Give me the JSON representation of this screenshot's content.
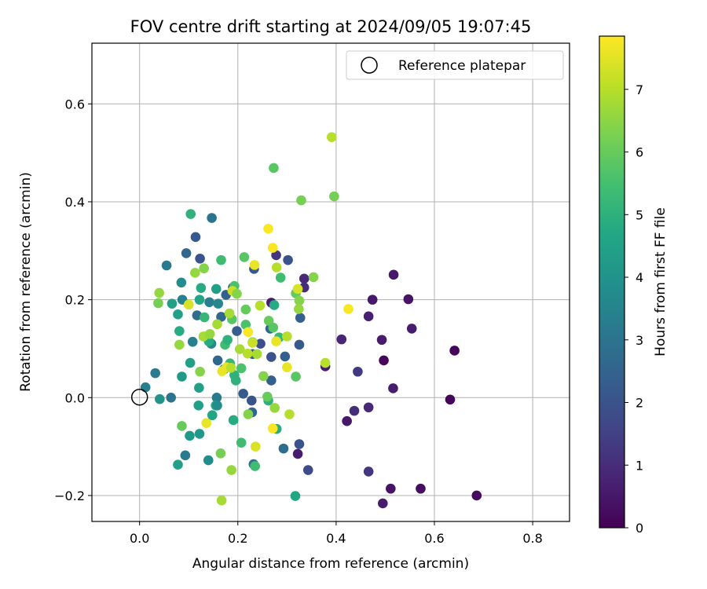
{
  "chart_data": {
    "type": "scatter",
    "title": "FOV centre drift starting at 2024/09/05 19:07:45",
    "xlabel": "Angular distance from reference (arcmin)",
    "ylabel": "Rotation from reference (arcmin)",
    "xlim": [
      -0.097,
      0.875
    ],
    "ylim": [
      -0.253,
      0.724
    ],
    "xticks": [
      0.0,
      0.2,
      0.4,
      0.6,
      0.8
    ],
    "xtick_labels": [
      "0.0",
      "0.2",
      "0.4",
      "0.6",
      "0.8"
    ],
    "yticks": [
      -0.2,
      0.0,
      0.2,
      0.4,
      0.6
    ],
    "ytick_labels": [
      "−0.2",
      "0.0",
      "0.2",
      "0.4",
      "0.6"
    ],
    "grid": true,
    "legend": {
      "placement": "top-right",
      "entries": [
        "Reference platepar"
      ]
    },
    "reference_point": {
      "x": 0.0,
      "y": 0.0,
      "marker": "hollow circle"
    },
    "colormap": "viridis",
    "colorbar": {
      "label": "Hours from first FF file",
      "range": [
        0,
        7.85
      ],
      "ticks": [
        0,
        1,
        2,
        3,
        4,
        5,
        6,
        7
      ],
      "tick_labels": [
        "0",
        "1",
        "2",
        "3",
        "4",
        "5",
        "6",
        "7"
      ]
    },
    "points": [
      {
        "x": 0.641,
        "y": 0.096,
        "h": 0.1
      },
      {
        "x": 0.686,
        "y": -0.2,
        "h": 0.2
      },
      {
        "x": 0.632,
        "y": -0.004,
        "h": 0.1
      },
      {
        "x": 0.572,
        "y": -0.186,
        "h": 0.3
      },
      {
        "x": 0.554,
        "y": 0.141,
        "h": 0.6
      },
      {
        "x": 0.547,
        "y": 0.201,
        "h": 0.4
      },
      {
        "x": 0.517,
        "y": 0.251,
        "h": 0.5
      },
      {
        "x": 0.516,
        "y": 0.019,
        "h": 0.6
      },
      {
        "x": 0.511,
        "y": -0.186,
        "h": 0.4
      },
      {
        "x": 0.497,
        "y": 0.076,
        "h": 0.1
      },
      {
        "x": 0.495,
        "y": -0.216,
        "h": 0.6
      },
      {
        "x": 0.493,
        "y": 0.118,
        "h": 0.6
      },
      {
        "x": 0.474,
        "y": 0.2,
        "h": 0.5
      },
      {
        "x": 0.466,
        "y": 0.166,
        "h": 0.7
      },
      {
        "x": 0.466,
        "y": -0.02,
        "h": 0.9
      },
      {
        "x": 0.466,
        "y": -0.151,
        "h": 1.2
      },
      {
        "x": 0.444,
        "y": 0.053,
        "h": 1.3
      },
      {
        "x": 0.437,
        "y": -0.027,
        "h": 1.0
      },
      {
        "x": 0.422,
        "y": -0.048,
        "h": 0.5
      },
      {
        "x": 0.411,
        "y": 0.119,
        "h": 0.8
      },
      {
        "x": 0.378,
        "y": 0.064,
        "h": 0.6
      },
      {
        "x": 0.335,
        "y": 0.243,
        "h": 0.9
      },
      {
        "x": 0.335,
        "y": 0.225,
        "h": 1.0
      },
      {
        "x": 0.343,
        "y": -0.148,
        "h": 1.8
      },
      {
        "x": 0.325,
        "y": -0.095,
        "h": 2.0
      },
      {
        "x": 0.322,
        "y": -0.115,
        "h": 0.6
      },
      {
        "x": 0.325,
        "y": 0.108,
        "h": 2.2
      },
      {
        "x": 0.327,
        "y": 0.163,
        "h": 2.4
      },
      {
        "x": 0.302,
        "y": 0.281,
        "h": 2.0
      },
      {
        "x": 0.278,
        "y": 0.291,
        "h": 1.2
      },
      {
        "x": 0.296,
        "y": 0.084,
        "h": 2.4
      },
      {
        "x": 0.293,
        "y": -0.104,
        "h": 2.8
      },
      {
        "x": 0.268,
        "y": 0.194,
        "h": 0.6
      },
      {
        "x": 0.266,
        "y": 0.141,
        "h": 2.6
      },
      {
        "x": 0.268,
        "y": 0.083,
        "h": 2.0
      },
      {
        "x": 0.268,
        "y": 0.035,
        "h": 2.4
      },
      {
        "x": 0.233,
        "y": 0.263,
        "h": 2.2
      },
      {
        "x": 0.246,
        "y": 0.11,
        "h": 1.9
      },
      {
        "x": 0.23,
        "y": 0.089,
        "h": 2.3
      },
      {
        "x": 0.228,
        "y": -0.006,
        "h": 2.0
      },
      {
        "x": 0.229,
        "y": -0.03,
        "h": 2.6
      },
      {
        "x": 0.232,
        "y": -0.136,
        "h": 3.0
      },
      {
        "x": 0.211,
        "y": 0.008,
        "h": 2.2
      },
      {
        "x": 0.198,
        "y": 0.136,
        "h": 2.3
      },
      {
        "x": 0.19,
        "y": 0.225,
        "h": 2.0
      },
      {
        "x": 0.176,
        "y": 0.21,
        "h": 2.4
      },
      {
        "x": 0.166,
        "y": 0.165,
        "h": 2.6
      },
      {
        "x": 0.159,
        "y": 0.076,
        "h": 2.6
      },
      {
        "x": 0.147,
        "y": 0.367,
        "h": 3.0
      },
      {
        "x": 0.114,
        "y": 0.328,
        "h": 2.2
      },
      {
        "x": 0.123,
        "y": 0.284,
        "h": 2.0
      },
      {
        "x": 0.095,
        "y": 0.295,
        "h": 2.6
      },
      {
        "x": 0.055,
        "y": 0.27,
        "h": 3.2
      },
      {
        "x": 0.117,
        "y": 0.168,
        "h": 2.8
      },
      {
        "x": 0.087,
        "y": 0.2,
        "h": 3.4
      },
      {
        "x": 0.085,
        "y": 0.235,
        "h": 3.8
      },
      {
        "x": 0.142,
        "y": 0.195,
        "h": 3.3
      },
      {
        "x": 0.16,
        "y": 0.192,
        "h": 3.6
      },
      {
        "x": 0.108,
        "y": 0.114,
        "h": 3.4
      },
      {
        "x": 0.146,
        "y": 0.11,
        "h": 3.6
      },
      {
        "x": 0.172,
        "y": 0.058,
        "h": 3.0
      },
      {
        "x": 0.157,
        "y": 0.0,
        "h": 3.2
      },
      {
        "x": 0.064,
        "y": 0.0,
        "h": 3.0
      },
      {
        "x": 0.012,
        "y": 0.021,
        "h": 3.4
      },
      {
        "x": 0.032,
        "y": 0.05,
        "h": 3.2
      },
      {
        "x": 0.041,
        "y": -0.003,
        "h": 4.0
      },
      {
        "x": 0.093,
        "y": -0.118,
        "h": 3.2
      },
      {
        "x": 0.14,
        "y": -0.128,
        "h": 3.8
      },
      {
        "x": 0.122,
        "y": -0.074,
        "h": 4.2
      },
      {
        "x": 0.102,
        "y": -0.078,
        "h": 4.2
      },
      {
        "x": 0.12,
        "y": -0.016,
        "h": 4.4
      },
      {
        "x": 0.148,
        "y": -0.036,
        "h": 4.6
      },
      {
        "x": 0.155,
        "y": -0.016,
        "h": 4.8
      },
      {
        "x": 0.158,
        "y": -0.016,
        "h": 3.8
      },
      {
        "x": 0.078,
        "y": -0.137,
        "h": 4.4
      },
      {
        "x": 0.086,
        "y": 0.043,
        "h": 4.2
      },
      {
        "x": 0.103,
        "y": 0.071,
        "h": 4.4
      },
      {
        "x": 0.121,
        "y": 0.02,
        "h": 4.4
      },
      {
        "x": 0.078,
        "y": 0.17,
        "h": 4.4
      },
      {
        "x": 0.066,
        "y": 0.192,
        "h": 4.4
      },
      {
        "x": 0.081,
        "y": 0.136,
        "h": 4.8
      },
      {
        "x": 0.122,
        "y": 0.2,
        "h": 4.6
      },
      {
        "x": 0.125,
        "y": 0.224,
        "h": 4.8
      },
      {
        "x": 0.156,
        "y": 0.222,
        "h": 4.4
      },
      {
        "x": 0.104,
        "y": 0.375,
        "h": 5.0
      },
      {
        "x": 0.166,
        "y": 0.281,
        "h": 5.4
      },
      {
        "x": 0.132,
        "y": 0.164,
        "h": 5.2
      },
      {
        "x": 0.141,
        "y": 0.115,
        "h": 4.8
      },
      {
        "x": 0.174,
        "y": 0.108,
        "h": 5.4
      },
      {
        "x": 0.179,
        "y": 0.118,
        "h": 5.0
      },
      {
        "x": 0.193,
        "y": 0.046,
        "h": 5.0
      },
      {
        "x": 0.184,
        "y": 0.07,
        "h": 5.2
      },
      {
        "x": 0.196,
        "y": 0.035,
        "h": 5.0
      },
      {
        "x": 0.191,
        "y": -0.046,
        "h": 4.8
      },
      {
        "x": 0.207,
        "y": -0.092,
        "h": 5.4
      },
      {
        "x": 0.235,
        "y": -0.14,
        "h": 5.4
      },
      {
        "x": 0.262,
        "y": -0.006,
        "h": 5.0
      },
      {
        "x": 0.279,
        "y": -0.064,
        "h": 4.8
      },
      {
        "x": 0.207,
        "y": 0.06,
        "h": 5.6
      },
      {
        "x": 0.216,
        "y": 0.149,
        "h": 5.6
      },
      {
        "x": 0.23,
        "y": 0.113,
        "h": 5.8
      },
      {
        "x": 0.188,
        "y": 0.16,
        "h": 5.8
      },
      {
        "x": 0.193,
        "y": 0.228,
        "h": 5.6
      },
      {
        "x": 0.213,
        "y": 0.287,
        "h": 5.8
      },
      {
        "x": 0.216,
        "y": 0.18,
        "h": 6.0
      },
      {
        "x": 0.274,
        "y": 0.189,
        "h": 4.8
      },
      {
        "x": 0.263,
        "y": 0.157,
        "h": 6.0
      },
      {
        "x": 0.272,
        "y": 0.143,
        "h": 5.8
      },
      {
        "x": 0.284,
        "y": 0.123,
        "h": 5.2
      },
      {
        "x": 0.287,
        "y": 0.245,
        "h": 5.4
      },
      {
        "x": 0.273,
        "y": 0.469,
        "h": 5.8
      },
      {
        "x": 0.329,
        "y": 0.403,
        "h": 6.2
      },
      {
        "x": 0.396,
        "y": 0.411,
        "h": 6.2
      },
      {
        "x": 0.318,
        "y": 0.213,
        "h": 6.0
      },
      {
        "x": 0.325,
        "y": 0.198,
        "h": 6.4
      },
      {
        "x": 0.324,
        "y": 0.181,
        "h": 6.6
      },
      {
        "x": 0.354,
        "y": 0.246,
        "h": 6.4
      },
      {
        "x": 0.318,
        "y": 0.043,
        "h": 5.8
      },
      {
        "x": 0.317,
        "y": -0.201,
        "h": 4.6
      },
      {
        "x": 0.252,
        "y": 0.044,
        "h": 6.4
      },
      {
        "x": 0.26,
        "y": 0.002,
        "h": 6.0
      },
      {
        "x": 0.275,
        "y": -0.021,
        "h": 6.6
      },
      {
        "x": 0.221,
        "y": -0.034,
        "h": 6.4
      },
      {
        "x": 0.165,
        "y": -0.114,
        "h": 6.2
      },
      {
        "x": 0.187,
        "y": -0.148,
        "h": 6.6
      },
      {
        "x": 0.167,
        "y": -0.21,
        "h": 6.8
      },
      {
        "x": 0.086,
        "y": -0.058,
        "h": 6.0
      },
      {
        "x": 0.136,
        "y": -0.052,
        "h": 7.6
      },
      {
        "x": 0.081,
        "y": 0.108,
        "h": 6.6
      },
      {
        "x": 0.123,
        "y": 0.053,
        "h": 6.4
      },
      {
        "x": 0.13,
        "y": 0.125,
        "h": 6.8
      },
      {
        "x": 0.143,
        "y": 0.13,
        "h": 6.6
      },
      {
        "x": 0.158,
        "y": 0.15,
        "h": 6.8
      },
      {
        "x": 0.183,
        "y": 0.172,
        "h": 6.8
      },
      {
        "x": 0.189,
        "y": 0.218,
        "h": 7.2
      },
      {
        "x": 0.198,
        "y": 0.212,
        "h": 6.4
      },
      {
        "x": 0.04,
        "y": 0.214,
        "h": 6.6
      },
      {
        "x": 0.038,
        "y": 0.193,
        "h": 6.2
      },
      {
        "x": 0.1,
        "y": 0.19,
        "h": 7.4
      },
      {
        "x": 0.131,
        "y": 0.264,
        "h": 6.4
      },
      {
        "x": 0.113,
        "y": 0.255,
        "h": 6.6
      },
      {
        "x": 0.177,
        "y": 0.062,
        "h": 7.6
      },
      {
        "x": 0.168,
        "y": 0.054,
        "h": 7.6
      },
      {
        "x": 0.186,
        "y": 0.061,
        "h": 7.0
      },
      {
        "x": 0.204,
        "y": 0.099,
        "h": 6.8
      },
      {
        "x": 0.22,
        "y": 0.09,
        "h": 7.0
      },
      {
        "x": 0.23,
        "y": 0.112,
        "h": 7.2
      },
      {
        "x": 0.239,
        "y": 0.089,
        "h": 6.8
      },
      {
        "x": 0.221,
        "y": 0.134,
        "h": 7.8
      },
      {
        "x": 0.245,
        "y": 0.188,
        "h": 7.0
      },
      {
        "x": 0.262,
        "y": 0.345,
        "h": 7.8
      },
      {
        "x": 0.271,
        "y": 0.306,
        "h": 7.8
      },
      {
        "x": 0.234,
        "y": 0.271,
        "h": 7.6
      },
      {
        "x": 0.279,
        "y": 0.266,
        "h": 7.0
      },
      {
        "x": 0.278,
        "y": 0.115,
        "h": 7.6
      },
      {
        "x": 0.3,
        "y": 0.125,
        "h": 7.0
      },
      {
        "x": 0.3,
        "y": 0.062,
        "h": 7.6
      },
      {
        "x": 0.236,
        "y": -0.1,
        "h": 7.4
      },
      {
        "x": 0.271,
        "y": -0.063,
        "h": 7.8
      },
      {
        "x": 0.305,
        "y": -0.034,
        "h": 7.0
      },
      {
        "x": 0.322,
        "y": 0.222,
        "h": 7.4
      },
      {
        "x": 0.378,
        "y": 0.071,
        "h": 7.0
      },
      {
        "x": 0.425,
        "y": 0.181,
        "h": 7.8
      },
      {
        "x": 0.391,
        "y": 0.532,
        "h": 7.0
      }
    ]
  }
}
